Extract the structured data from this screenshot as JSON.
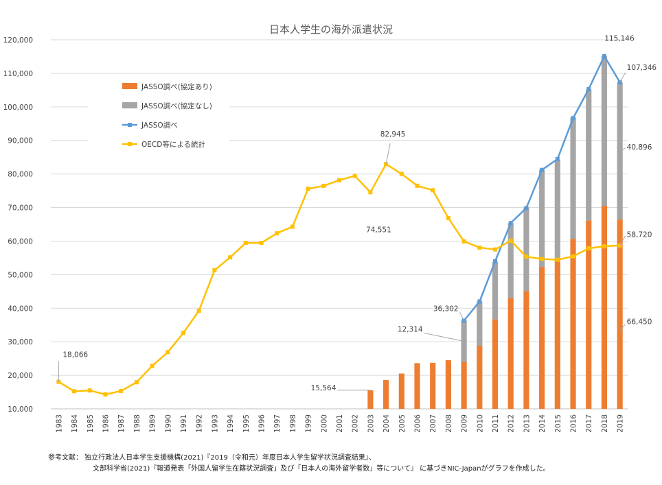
{
  "chart_data": {
    "type": "bar",
    "title": "日本人学生の海外派遣状況",
    "xlabel": "",
    "ylabel": "",
    "ylim": [
      10000,
      120000
    ],
    "yticks": [
      "10,000",
      "20,000",
      "30,000",
      "40,000",
      "50,000",
      "60,000",
      "70,000",
      "80,000",
      "90,000",
      "100,000",
      "110,000",
      "120,000"
    ],
    "categories": [
      "1983",
      "1984",
      "1985",
      "1986",
      "1987",
      "1988",
      "1989",
      "1990",
      "1991",
      "1992",
      "1993",
      "1994",
      "1995",
      "1996",
      "1997",
      "1998",
      "1999",
      "2000",
      "2001",
      "2002",
      "2003",
      "2004",
      "2005",
      "2006",
      "2007",
      "2008",
      "2009",
      "2010",
      "2011",
      "2012",
      "2013",
      "2014",
      "2015",
      "2016",
      "2017",
      "2018",
      "2019"
    ],
    "grid": true,
    "legend_position": "top-left",
    "series": [
      {
        "name": "JASSO調べ(協定あり)",
        "type": "bar",
        "color": "#ED7D31",
        "values": [
          null,
          null,
          null,
          null,
          null,
          null,
          null,
          null,
          null,
          null,
          null,
          null,
          null,
          null,
          null,
          null,
          null,
          null,
          null,
          null,
          15564,
          18570,
          20526,
          23614,
          23727,
          24500,
          23988,
          28804,
          36656,
          43009,
          45082,
          52305,
          54455,
          60687,
          66145,
          70530,
          66450
        ]
      },
      {
        "name": "JASSO調べ(協定なし)",
        "type": "bar",
        "color": "#A5A5A5",
        "values": [
          null,
          null,
          null,
          null,
          null,
          null,
          null,
          null,
          null,
          null,
          null,
          null,
          null,
          null,
          null,
          null,
          null,
          null,
          null,
          null,
          null,
          null,
          null,
          null,
          null,
          null,
          12314,
          13150,
          17200,
          22341,
          24887,
          28914,
          29701,
          36158,
          39040,
          44616,
          40896
        ]
      },
      {
        "name": "JASSO調べ",
        "type": "line",
        "color": "#5B9BD5",
        "values": [
          null,
          null,
          null,
          null,
          null,
          null,
          null,
          null,
          null,
          null,
          null,
          null,
          null,
          null,
          null,
          null,
          null,
          null,
          null,
          null,
          null,
          null,
          null,
          null,
          null,
          null,
          36302,
          42000,
          53991,
          65373,
          69869,
          81219,
          84456,
          96641,
          105301,
          115146,
          107346
        ]
      },
      {
        "name": "OECD等による統計",
        "type": "line",
        "color": "#FFC000",
        "values": [
          18066,
          15246,
          15485,
          14297,
          15335,
          17926,
          22798,
          26893,
          32609,
          39258,
          51295,
          55145,
          59468,
          59460,
          62324,
          64284,
          75586,
          76464,
          78151,
          79455,
          74551,
          82945,
          80023,
          76492,
          75156,
          66833,
          59923,
          58060,
          57501,
          60138,
          55350,
          54676,
          54443,
          55469,
          57837,
          58438,
          58720
        ]
      }
    ],
    "annotations": [
      {
        "text": "18,066",
        "category": "1983",
        "series": "OECD等による統計"
      },
      {
        "text": "15,564",
        "category": "2003",
        "series": "JASSO調べ(協定あり)"
      },
      {
        "text": "82,945",
        "category": "2004",
        "series": "OECD等による統計"
      },
      {
        "text": "74,551",
        "category": "2003",
        "series": "OECD等による統計"
      },
      {
        "text": "36,302",
        "category": "2009",
        "series": "JASSO調べ"
      },
      {
        "text": "12,314",
        "category": "2009",
        "series": "JASSO調べ(協定なし)"
      },
      {
        "text": "115,146",
        "category": "2018",
        "series": "JASSO調べ"
      },
      {
        "text": "107,346",
        "category": "2019",
        "series": "JASSO調べ"
      },
      {
        "text": "40,896",
        "category": "2019",
        "series": "JASSO調べ(協定なし)"
      },
      {
        "text": "58,720",
        "category": "2019",
        "series": "OECD等による統計"
      },
      {
        "text": "66,450",
        "category": "2019",
        "series": "JASSO調べ(協定あり)"
      }
    ]
  },
  "source": {
    "line1": "参考文献：  独立行政法人日本学生支援機構(2021)『2019（令和元）年度日本人学生留学状況調査結果』、",
    "line2": "文部科学省(2021)『報道発表「外国人留学生在籍状況調査」及び「日本人の海外留学者数」等について』  に基づきNIC-Japanがグラフを作成した。"
  }
}
